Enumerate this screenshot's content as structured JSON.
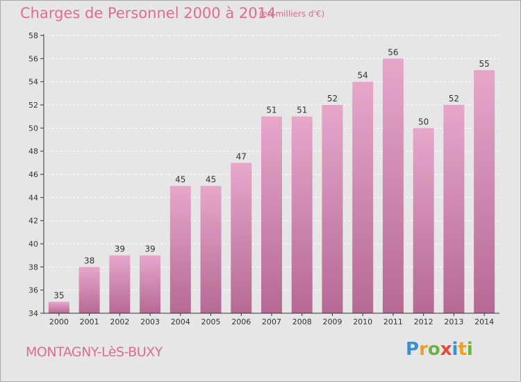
{
  "title": "Charges de Personnel 2000 à 2014",
  "subtitle": "(en milliers d'€)",
  "place": "MONTAGNY-LèS-BUXY",
  "logo": {
    "letters": [
      "P",
      "r",
      "o",
      "x",
      "i",
      "t",
      "i"
    ],
    "colors": [
      "#3b8fd6",
      "#f0a020",
      "#6db33f",
      "#e84a3a",
      "#3b8fd6",
      "#f0a020",
      "#6db33f"
    ]
  },
  "colors": {
    "bar_top": "#e6a7cb",
    "bar_bottom": "#b56a93",
    "axis": "#333333",
    "grid": "#ffffff",
    "accent": "#de6d8e"
  },
  "chart_data": {
    "type": "bar",
    "categories": [
      "2000",
      "2001",
      "2002",
      "2003",
      "2004",
      "2005",
      "2006",
      "2007",
      "2008",
      "2009",
      "2010",
      "2011",
      "2012",
      "2013",
      "2014"
    ],
    "values": [
      35,
      38,
      39,
      39,
      45,
      45,
      47,
      51,
      51,
      52,
      54,
      56,
      50,
      52,
      55
    ],
    "ylim": [
      34,
      58
    ],
    "yticks": [
      34,
      36,
      38,
      40,
      42,
      44,
      46,
      48,
      50,
      52,
      54,
      56,
      58
    ],
    "grid": "horizontal dashed",
    "data_labels": true
  }
}
